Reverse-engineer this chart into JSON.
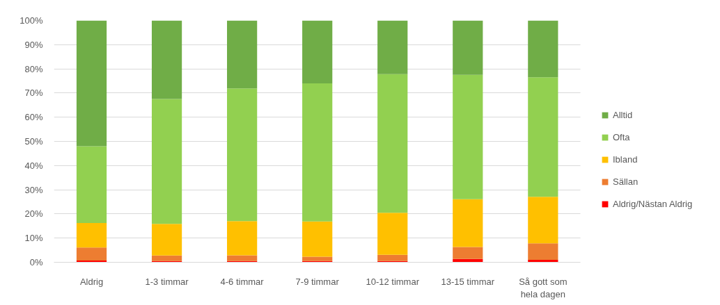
{
  "chart_data": {
    "type": "bar",
    "stacked": true,
    "categories": [
      "Aldrig",
      "1-3 timmar",
      "4-6 timmar",
      "7-9 timmar",
      "10-12 timmar",
      "13-15 timmar",
      "Så gott som hela dagen"
    ],
    "series": [
      {
        "name": "Aldrig/Nästan Aldrig",
        "color": "#ff0000",
        "values": [
          0.7,
          0.5,
          0.5,
          0.5,
          0.5,
          1.4,
          1.0
        ]
      },
      {
        "name": "Sällan",
        "color": "#ed7d31",
        "values": [
          5.4,
          2.3,
          2.4,
          1.8,
          2.6,
          4.9,
          6.8
        ]
      },
      {
        "name": "Ibland",
        "color": "#ffc000",
        "values": [
          10.1,
          13.1,
          14.1,
          14.6,
          17.4,
          19.8,
          19.3
        ]
      },
      {
        "name": "Ofta",
        "color": "#92d050",
        "values": [
          31.8,
          51.6,
          54.9,
          57.1,
          57.3,
          51.4,
          49.4
        ]
      },
      {
        "name": "Alltid",
        "color": "#70ad47",
        "values": [
          52.0,
          32.5,
          28.1,
          26.0,
          22.2,
          22.5,
          23.5
        ]
      }
    ],
    "ylim": [
      0,
      100
    ],
    "yticks": [
      {
        "value": 0,
        "label": "0%"
      },
      {
        "value": 10,
        "label": "10%"
      },
      {
        "value": 20,
        "label": "20%"
      },
      {
        "value": 30,
        "label": "30%"
      },
      {
        "value": 40,
        "label": "40%"
      },
      {
        "value": 50,
        "label": "50%"
      },
      {
        "value": 60,
        "label": "60%"
      },
      {
        "value": 70,
        "label": "70%"
      },
      {
        "value": 80,
        "label": "80%"
      },
      {
        "value": 90,
        "label": "90%"
      },
      {
        "value": 100,
        "label": "100%"
      }
    ],
    "grid": "y",
    "legend": "right"
  }
}
